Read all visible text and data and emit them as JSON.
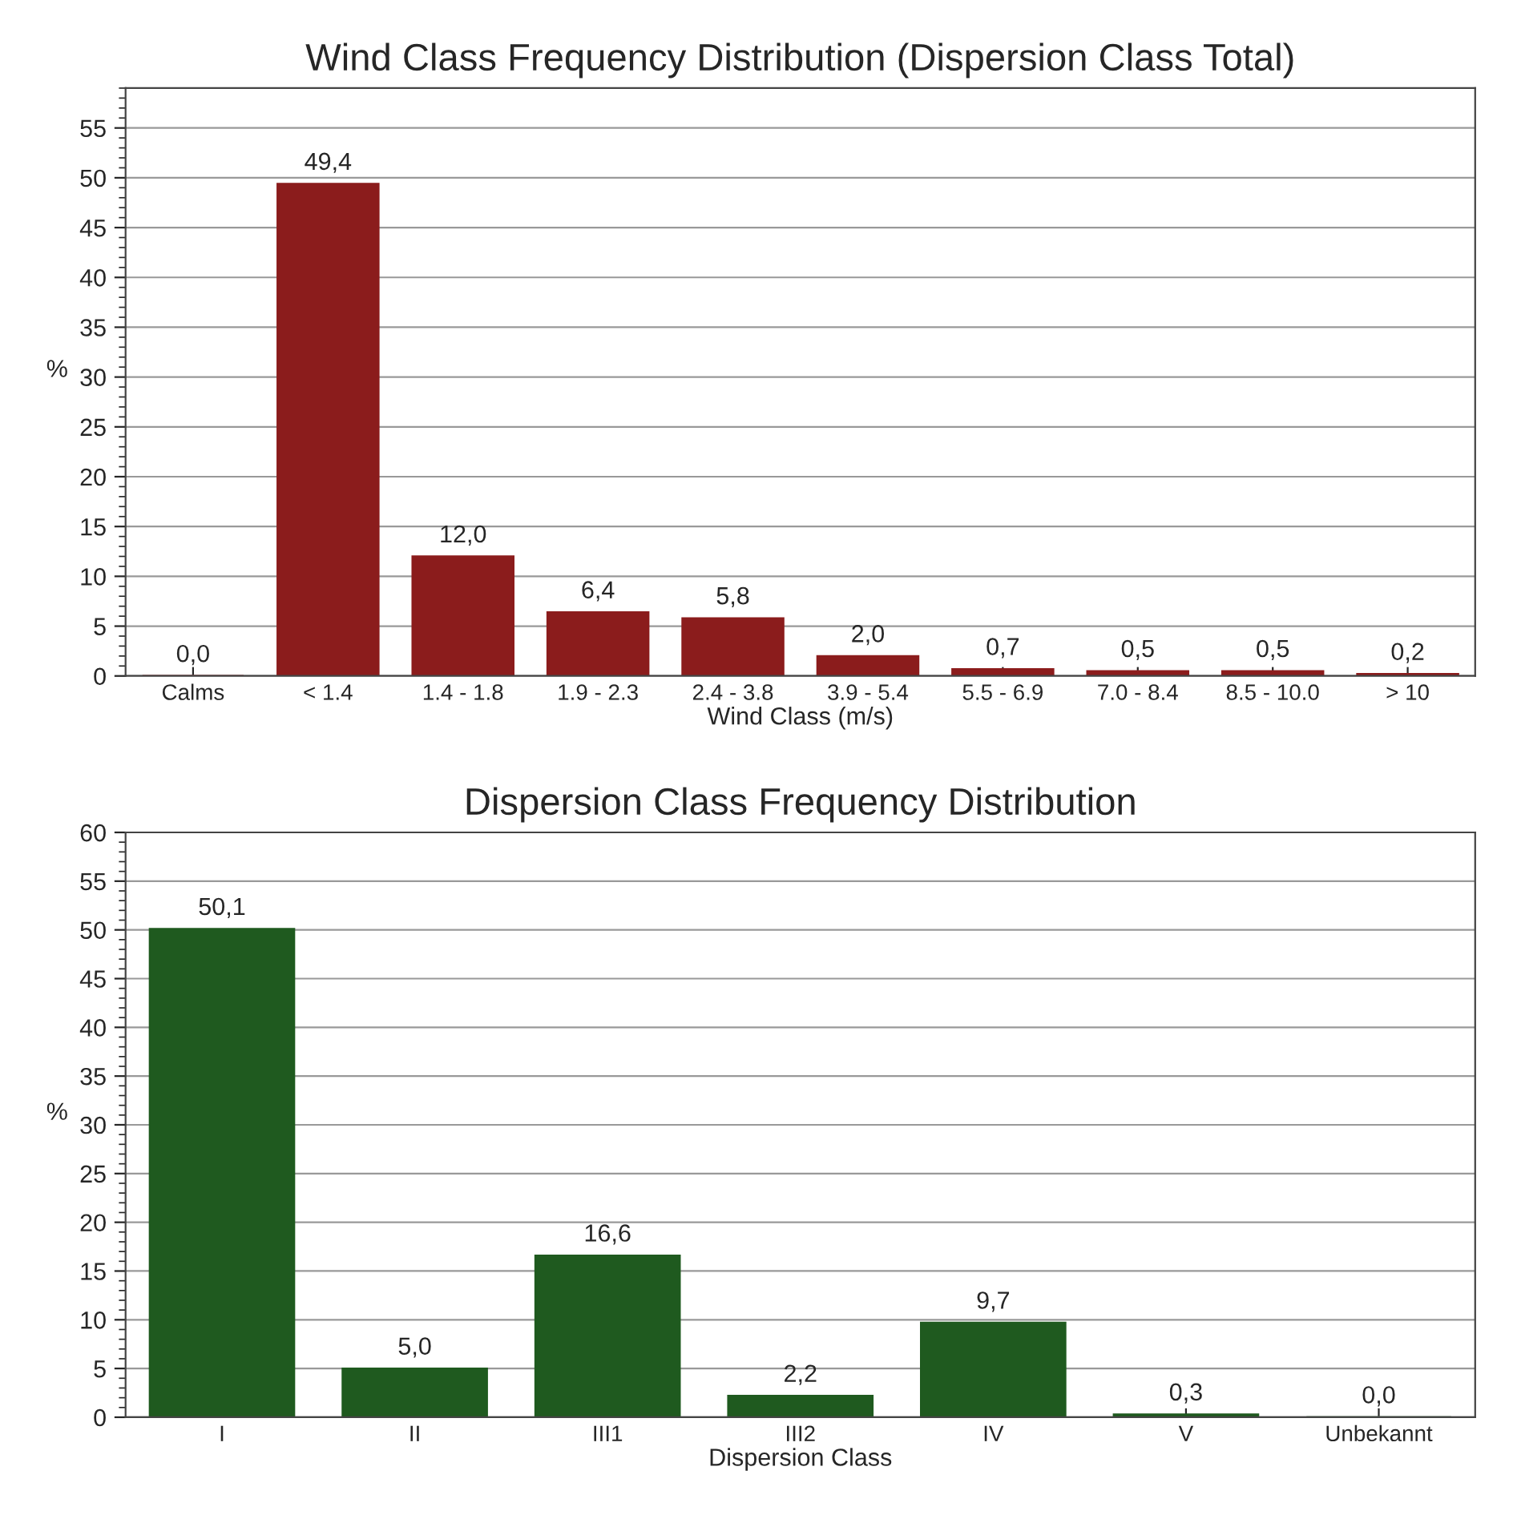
{
  "chart_data": [
    {
      "type": "bar",
      "title": "Wind Class Frequency Distribution (Dispersion Class Total)",
      "xlabel": "Wind Class (m/s)",
      "ylabel": "%",
      "categories": [
        "Calms",
        "< 1.4",
        "1.4 - 1.8",
        "1.9 - 2.3",
        "2.4 - 3.8",
        "3.9 - 5.4",
        "5.5 - 6.9",
        "7.0 - 8.4",
        "8.5 - 10.0",
        "> 10"
      ],
      "values": [
        0.0,
        49.4,
        12.0,
        6.4,
        5.8,
        2.0,
        0.7,
        0.5,
        0.5,
        0.2
      ],
      "value_labels": [
        "0,0",
        "49,4",
        "12,0",
        "6,4",
        "5,8",
        "2,0",
        "0,7",
        "0,5",
        "0,5",
        "0,2"
      ],
      "color": "#8b1c1c",
      "ylim": [
        0,
        59
      ],
      "yticks": [
        0,
        5,
        10,
        15,
        20,
        25,
        30,
        35,
        40,
        45,
        50,
        55
      ],
      "grid": "y",
      "legend": false
    },
    {
      "type": "bar",
      "title": "Dispersion Class Frequency Distribution",
      "xlabel": "Dispersion Class",
      "ylabel": "%",
      "categories": [
        "I",
        "II",
        "III1",
        "III2",
        "IV",
        "V",
        "Unbekannt"
      ],
      "values": [
        50.1,
        5.0,
        16.6,
        2.2,
        9.7,
        0.3,
        0.0
      ],
      "value_labels": [
        "50,1",
        "5,0",
        "16,6",
        "2,2",
        "9,7",
        "0,3",
        "0,0"
      ],
      "color": "#1f5a1f",
      "ylim": [
        0,
        60
      ],
      "yticks": [
        0,
        5,
        10,
        15,
        20,
        25,
        30,
        35,
        40,
        45,
        50,
        55,
        60
      ],
      "grid": "y",
      "legend": false
    }
  ]
}
